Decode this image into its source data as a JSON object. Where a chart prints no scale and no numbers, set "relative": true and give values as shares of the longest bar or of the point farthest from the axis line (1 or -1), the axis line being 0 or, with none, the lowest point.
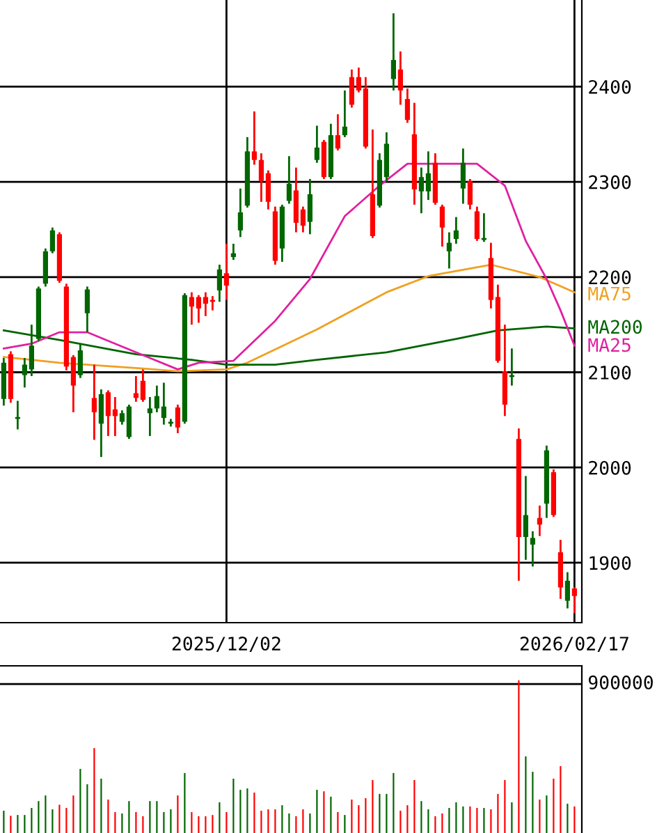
{
  "chart_data": [
    {
      "type": "candlestick",
      "categories": [
        null,
        null,
        null,
        null,
        null,
        null,
        null,
        null,
        null,
        null,
        null,
        null,
        null,
        null,
        null,
        null,
        null,
        null,
        null,
        null,
        null,
        null,
        null,
        null,
        null,
        null,
        null,
        null,
        null,
        null,
        null,
        null,
        "2025/12/02",
        null,
        null,
        null,
        null,
        null,
        null,
        null,
        null,
        null,
        null,
        null,
        null,
        null,
        null,
        null,
        null,
        null,
        null,
        null,
        null,
        null,
        null,
        null,
        null,
        null,
        null,
        null,
        null,
        null,
        null,
        null,
        null,
        null,
        null,
        null,
        null,
        null,
        null,
        null,
        null,
        null,
        null,
        null,
        null,
        null,
        null,
        null,
        null,
        null,
        "2026/02/17"
      ],
      "ohlc": [
        [
          2072,
          2115,
          2065,
          2110
        ],
        [
          2119,
          2122,
          2068,
          2072
        ],
        [
          2051,
          2070,
          2040,
          2053
        ],
        [
          2097,
          2115,
          2084,
          2108
        ],
        [
          2103,
          2150,
          2096,
          2128
        ],
        [
          2135,
          2190,
          2133,
          2188
        ],
        [
          2193,
          2230,
          2190,
          2227
        ],
        [
          2227,
          2252,
          2225,
          2249
        ],
        [
          2245,
          2247,
          2194,
          2196
        ],
        [
          2190,
          2193,
          2102,
          2106
        ],
        [
          2116,
          2118,
          2058,
          2086
        ],
        [
          2097,
          2130,
          2094,
          2123
        ],
        [
          2162,
          2190,
          2142,
          2187
        ],
        [
          2073,
          2108,
          2029,
          2058
        ],
        [
          2046,
          2082,
          2011,
          2077
        ],
        [
          2079,
          2081,
          2033,
          2054
        ],
        [
          2061,
          2074,
          2033,
          2054
        ],
        [
          2048,
          2060,
          2045,
          2057
        ],
        [
          2032,
          2066,
          2030,
          2064
        ],
        [
          2078,
          2096,
          2069,
          2073
        ],
        [
          2091,
          2103,
          2069,
          2071
        ],
        [
          2057,
          2074,
          2033,
          2062
        ],
        [
          2062,
          2086,
          2058,
          2075
        ],
        [
          2052,
          2089,
          2045,
          2064
        ],
        [
          2046,
          2051,
          2043,
          2048
        ],
        [
          2063,
          2066,
          2036,
          2042
        ],
        [
          2048,
          2183,
          2046,
          2181
        ],
        [
          2179,
          2184,
          2150,
          2169
        ],
        [
          2179,
          2181,
          2152,
          2167
        ],
        [
          2179,
          2184,
          2159,
          2172
        ],
        [
          2176,
          2180,
          2165,
          2174
        ],
        [
          2186,
          2213,
          2174,
          2208
        ],
        [
          2204,
          2235,
          2176,
          2191
        ],
        [
          2221,
          2235,
          2218,
          2225
        ],
        [
          2249,
          2293,
          2242,
          2268
        ],
        [
          2275,
          2347,
          2273,
          2332
        ],
        [
          2332,
          2374,
          2318,
          2323
        ],
        [
          2323,
          2330,
          2279,
          2301
        ],
        [
          2309,
          2312,
          2271,
          2279
        ],
        [
          2269,
          2274,
          2213,
          2217
        ],
        [
          2230,
          2276,
          2216,
          2274
        ],
        [
          2280,
          2327,
          2277,
          2298
        ],
        [
          2291,
          2315,
          2247,
          2257
        ],
        [
          2271,
          2274,
          2247,
          2254
        ],
        [
          2258,
          2303,
          2245,
          2287
        ],
        [
          2323,
          2359,
          2320,
          2336
        ],
        [
          2342,
          2344,
          2303,
          2305
        ],
        [
          2305,
          2361,
          2303,
          2349
        ],
        [
          2349,
          2371,
          2333,
          2335
        ],
        [
          2349,
          2396,
          2347,
          2358
        ],
        [
          2410,
          2418,
          2378,
          2381
        ],
        [
          2410,
          2420,
          2394,
          2396
        ],
        [
          2398,
          2410,
          2335,
          2337
        ],
        [
          2287,
          2355,
          2241,
          2243
        ],
        [
          2275,
          2330,
          2273,
          2323
        ],
        [
          2305,
          2352,
          2300,
          2340
        ],
        [
          2408,
          2477,
          2396,
          2428
        ],
        [
          2418,
          2437,
          2381,
          2396
        ],
        [
          2387,
          2398,
          2362,
          2365
        ],
        [
          2350,
          2383,
          2276,
          2292
        ],
        [
          2290,
          2315,
          2267,
          2305
        ],
        [
          2290,
          2332,
          2281,
          2309
        ],
        [
          2320,
          2330,
          2276,
          2278
        ],
        [
          2274,
          2276,
          2232,
          2252
        ],
        [
          2227,
          2247,
          2209,
          2236
        ],
        [
          2240,
          2263,
          2235,
          2249
        ],
        [
          2293,
          2335,
          2277,
          2320
        ],
        [
          2301,
          2303,
          2271,
          2276
        ],
        [
          2269,
          2274,
          2238,
          2240
        ],
        [
          2239,
          2267,
          2237,
          2241
        ],
        [
          2220,
          2236,
          2167,
          2176
        ],
        [
          2179,
          2192,
          2110,
          2112
        ],
        [
          2101,
          2150,
          2054,
          2066
        ],
        [
          2095,
          2125,
          2086,
          2097
        ],
        [
          2030,
          2041,
          1881,
          1927
        ],
        [
          1927,
          1991,
          1903,
          1950
        ],
        [
          1919,
          1933,
          1896,
          1926
        ],
        [
          1947,
          1960,
          1928,
          1940
        ],
        [
          1962,
          2023,
          1947,
          2018
        ],
        [
          1995,
          1998,
          1948,
          1950
        ],
        [
          1911,
          1924,
          1862,
          1874
        ],
        [
          1860,
          1890,
          1852,
          1881
        ],
        [
          1873,
          1874,
          1847,
          1865
        ]
      ],
      "colors": [
        "#006600",
        "#ff0000",
        "#006600",
        "#006600",
        "#006600",
        "#006600",
        "#006600",
        "#006600",
        "#ff0000",
        "#ff0000",
        "#ff0000",
        "#006600",
        "#006600",
        "#ff0000",
        "#006600",
        "#ff0000",
        "#ff0000",
        "#006600",
        "#006600",
        "#ff0000",
        "#ff0000",
        "#006600",
        "#006600",
        "#006600",
        "#006600",
        "#ff0000",
        "#006600",
        "#ff0000",
        "#ff0000",
        "#ff0000",
        "#ff0000",
        "#006600",
        "#ff0000",
        "#006600",
        "#006600",
        "#006600",
        "#ff0000",
        "#ff0000",
        "#ff0000",
        "#ff0000",
        "#006600",
        "#006600",
        "#ff0000",
        "#ff0000",
        "#006600",
        "#006600",
        "#ff0000",
        "#006600",
        "#ff0000",
        "#006600",
        "#ff0000",
        "#ff0000",
        "#ff0000",
        "#ff0000",
        "#006600",
        "#006600",
        "#006600",
        "#ff0000",
        "#ff0000",
        "#ff0000",
        "#006600",
        "#006600",
        "#ff0000",
        "#ff0000",
        "#006600",
        "#006600",
        "#006600",
        "#ff0000",
        "#ff0000",
        "#006600",
        "#ff0000",
        "#ff0000",
        "#ff0000",
        "#006600",
        "#ff0000",
        "#006600",
        "#006600",
        "#ff0000",
        "#006600",
        "#ff0000",
        "#ff0000",
        "#006600",
        "#ff0000"
      ],
      "series": [
        {
          "type": "line",
          "name": "MA75",
          "color": "#f0a020",
          "values": [
            2116,
            null,
            null,
            null,
            2113,
            null,
            null,
            null,
            2110,
            null,
            null,
            null,
            null,
            null,
            null,
            null,
            null,
            null,
            null,
            null,
            2104,
            null,
            null,
            null,
            null,
            2101,
            null,
            null,
            null,
            null,
            null,
            null,
            2103,
            null,
            null,
            2110,
            null,
            null,
            null,
            null,
            null,
            null,
            null,
            null,
            null,
            2145,
            null,
            null,
            null,
            null,
            null,
            null,
            null,
            null,
            null,
            2184,
            null,
            null,
            null,
            null,
            null,
            2201,
            null,
            null,
            null,
            null,
            null,
            null,
            null,
            null,
            2213,
            null,
            null,
            null,
            null,
            null,
            null,
            2200,
            null,
            null,
            null,
            null,
            2184
          ]
        },
        {
          "type": "line",
          "name": "MA200",
          "color": "#006400",
          "values": [
            2144,
            null,
            null,
            null,
            null,
            null,
            null,
            null,
            2134,
            null,
            null,
            null,
            null,
            null,
            null,
            null,
            null,
            null,
            null,
            2119,
            null,
            null,
            null,
            null,
            null,
            null,
            null,
            2113,
            null,
            null,
            null,
            null,
            2108,
            null,
            null,
            null,
            null,
            null,
            null,
            2108,
            null,
            null,
            null,
            null,
            null,
            2113,
            null,
            null,
            null,
            null,
            null,
            null,
            null,
            null,
            null,
            2121,
            null,
            null,
            null,
            null,
            null,
            null,
            null,
            null,
            null,
            2135,
            null,
            null,
            null,
            null,
            null,
            2144,
            null,
            null,
            null,
            null,
            null,
            null,
            2148,
            null,
            null,
            null,
            2146
          ]
        },
        {
          "type": "line",
          "name": "MA25",
          "color": "#e020a0",
          "values": [
            2125,
            null,
            null,
            null,
            2130,
            null,
            null,
            null,
            2142,
            null,
            null,
            null,
            2142,
            null,
            null,
            null,
            2130,
            null,
            null,
            null,
            null,
            2115,
            null,
            null,
            null,
            2103,
            null,
            null,
            2110,
            null,
            null,
            null,
            null,
            2112,
            null,
            null,
            null,
            null,
            null,
            2154,
            null,
            null,
            null,
            null,
            2198,
            null,
            null,
            null,
            null,
            2264,
            null,
            null,
            null,
            null,
            2296,
            null,
            null,
            null,
            2319,
            null,
            null,
            null,
            null,
            null,
            null,
            null,
            null,
            null,
            2319,
            null,
            null,
            null,
            2296,
            null,
            null,
            2238,
            null,
            null,
            2198,
            null,
            2165,
            null,
            2128
          ]
        }
      ],
      "ylim": [
        1837,
        2491
      ],
      "yticks": [
        1900,
        2000,
        2100,
        2200,
        2300,
        2400
      ],
      "grid": true
    },
    {
      "type": "bar",
      "categories": [
        null,
        null,
        null,
        null,
        null,
        null,
        null,
        null,
        null,
        null,
        null,
        null,
        null,
        null,
        null,
        null,
        null,
        null,
        null,
        null,
        null,
        null,
        null,
        null,
        null,
        null,
        null,
        null,
        null,
        null,
        null,
        null,
        null,
        null,
        null,
        null,
        null,
        null,
        null,
        null,
        null,
        null,
        null,
        null,
        null,
        null,
        null,
        null,
        null,
        null,
        null,
        null,
        null,
        null,
        null,
        null,
        null,
        null,
        null,
        null,
        null,
        null,
        null,
        null,
        null,
        null,
        null,
        null,
        null,
        null,
        null,
        null,
        null,
        null,
        null,
        null,
        null,
        null,
        null,
        null,
        null,
        null,
        null
      ],
      "relative": true,
      "values": [
        0.146,
        0.113,
        0.118,
        0.118,
        0.164,
        0.209,
        0.246,
        0.155,
        0.185,
        0.164,
        0.246,
        0.42,
        0.319,
        0.556,
        0.356,
        0.219,
        0.137,
        0.128,
        0.209,
        0.137,
        0.11,
        0.209,
        0.209,
        0.137,
        0.155,
        0.246,
        0.393,
        0.137,
        0.11,
        0.11,
        0.118,
        0.201,
        0.137,
        0.356,
        0.283,
        0.292,
        0.265,
        0.146,
        0.155,
        0.155,
        0.182,
        0.128,
        0.11,
        0.155,
        0.128,
        0.283,
        0.273,
        0.238,
        0.137,
        0.118,
        0.219,
        0.182,
        0.228,
        0.347,
        0.256,
        0.256,
        0.393,
        0.146,
        0.182,
        0.347,
        0.209,
        0.155,
        0.11,
        0.128,
        0.164,
        0.201,
        0.174,
        0.174,
        0.164,
        0.164,
        0.155,
        0.256,
        0.347,
        0.201,
        1,
        0.502,
        0.401,
        0.219,
        0.246,
        0.356,
        0.438,
        0.192,
        0.174
      ],
      "ref_lines": [
        {
          "axis": "y",
          "value": 0.976,
          "color": "#000000"
        }
      ],
      "annotations": [
        "900000"
      ],
      "colors": [
        "#006600",
        "#ff0000",
        "#006600",
        "#006600",
        "#006600",
        "#006600",
        "#006600",
        "#006600",
        "#ff0000",
        "#ff0000",
        "#ff0000",
        "#006600",
        "#006600",
        "#ff0000",
        "#006600",
        "#ff0000",
        "#ff0000",
        "#006600",
        "#006600",
        "#ff0000",
        "#ff0000",
        "#006600",
        "#006600",
        "#006600",
        "#006600",
        "#ff0000",
        "#006600",
        "#ff0000",
        "#ff0000",
        "#ff0000",
        "#ff0000",
        "#006600",
        "#ff0000",
        "#006600",
        "#006600",
        "#006600",
        "#ff0000",
        "#ff0000",
        "#ff0000",
        "#ff0000",
        "#006600",
        "#006600",
        "#ff0000",
        "#ff0000",
        "#006600",
        "#006600",
        "#ff0000",
        "#006600",
        "#ff0000",
        "#006600",
        "#ff0000",
        "#ff0000",
        "#ff0000",
        "#ff0000",
        "#006600",
        "#006600",
        "#006600",
        "#ff0000",
        "#ff0000",
        "#ff0000",
        "#006600",
        "#006600",
        "#ff0000",
        "#ff0000",
        "#006600",
        "#006600",
        "#006600",
        "#ff0000",
        "#ff0000",
        "#006600",
        "#ff0000",
        "#ff0000",
        "#ff0000",
        "#006600",
        "#ff0000",
        "#006600",
        "#006600",
        "#ff0000",
        "#006600",
        "#ff0000",
        "#ff0000",
        "#006600",
        "#ff0000"
      ],
      "grid": false
    }
  ]
}
